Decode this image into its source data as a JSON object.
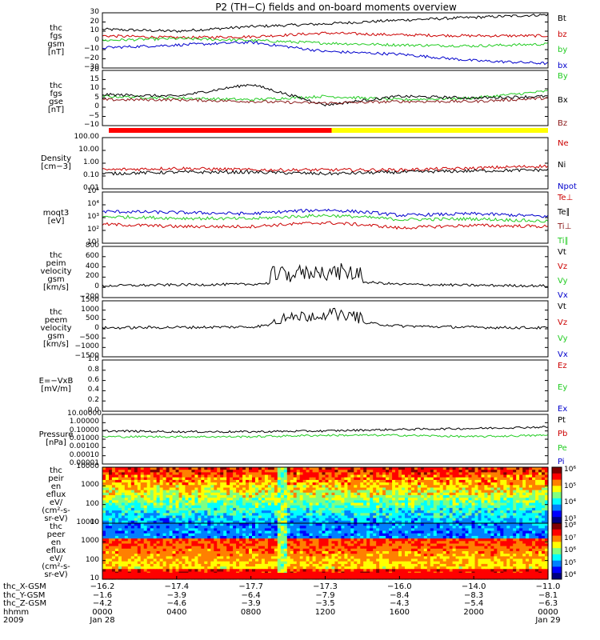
{
  "title": "P2 (TH−C) fields and on-board moments overview",
  "colors": {
    "black": "#000000",
    "red": "#cc0000",
    "green": "#22cc22",
    "blue": "#0000cc",
    "brick": "#8b1a1a",
    "yellow": "#ffff00"
  },
  "panels": [
    {
      "id": "fgs-gsm",
      "ylabel": [
        "thc",
        "fgs",
        "gsm",
        "[nT]"
      ],
      "ticks": [
        "30",
        "20",
        "10",
        "0",
        "−10",
        "−20",
        "−30"
      ],
      "ylim": [
        -30,
        30
      ],
      "legend": [
        {
          "text": "Bt",
          "color": "black"
        },
        {
          "text": "bz",
          "color": "red"
        },
        {
          "text": "by",
          "color": "green"
        },
        {
          "text": "bx",
          "color": "blue"
        }
      ]
    },
    {
      "id": "fgs-gse",
      "ylabel": [
        "thc",
        "fgs",
        "gse",
        "[nT]"
      ],
      "ticks": [
        "20",
        "15",
        "10",
        "5",
        "0",
        "−5",
        "−10"
      ],
      "ylim": [
        -12,
        20
      ],
      "legend": [
        {
          "text": "By",
          "color": "green"
        },
        {
          "text": "Bx",
          "color": "black"
        },
        {
          "text": "Bz",
          "color": "brick"
        }
      ]
    },
    {
      "id": "density",
      "ylabel": [
        "Density",
        "[cm−3]"
      ],
      "ticks": [
        "100.00",
        "10.00",
        "1.00",
        "0.10",
        "0.01"
      ],
      "ylim": [
        0.01,
        100
      ],
      "legend": [
        {
          "text": "Ne",
          "color": "red"
        },
        {
          "text": "Ni",
          "color": "black"
        },
        {
          "text": "Npot",
          "color": "blue"
        }
      ]
    },
    {
      "id": "temp",
      "ylabel": [
        "moqt3",
        "[eV]"
      ],
      "ticks": [
        "10⁵",
        "10⁴",
        "10³",
        "10²",
        "10¹"
      ],
      "ylim": [
        10,
        100000
      ],
      "legend": [
        {
          "text": "Te⊥",
          "color": "red"
        },
        {
          "text": "Te∥",
          "color": "black"
        },
        {
          "text": "Ti⊥",
          "color": "brick"
        },
        {
          "text": "Ti∥",
          "color": "green"
        }
      ]
    },
    {
      "id": "peim-vel",
      "ylabel": [
        "thc",
        "peim",
        "velocity",
        "gsm",
        "[km/s]"
      ],
      "ticks": [
        "800",
        "600",
        "400",
        "200",
        "0",
        "−200"
      ],
      "ylim": [
        -200,
        800
      ],
      "legend": [
        {
          "text": "Vt",
          "color": "black"
        },
        {
          "text": "Vz",
          "color": "red"
        },
        {
          "text": "Vy",
          "color": "green"
        },
        {
          "text": "Vx",
          "color": "blue"
        }
      ]
    },
    {
      "id": "peem-vel",
      "ylabel": [
        "thc",
        "peem",
        "velocity",
        "gsm",
        "[km/s]"
      ],
      "ticks": [
        "1500",
        "1000",
        "500",
        "0",
        "−500",
        "−1000",
        "−1500"
      ],
      "ylim": [
        -1500,
        1500
      ],
      "legend": [
        {
          "text": "Vt",
          "color": "black"
        },
        {
          "text": "Vz",
          "color": "red"
        },
        {
          "text": "Vy",
          "color": "green"
        },
        {
          "text": "Vx",
          "color": "blue"
        }
      ]
    },
    {
      "id": "efield",
      "ylabel": [
        "E=−VxB",
        "[mV/m]"
      ],
      "ticks": [
        "1.0",
        "0.8",
        "0.6",
        "0.4",
        "0.2",
        "0.0"
      ],
      "ylim": [
        0,
        1
      ],
      "legend": [
        {
          "text": "Ez",
          "color": "red"
        },
        {
          "text": "Ey",
          "color": "green"
        },
        {
          "text": "Ex",
          "color": "blue"
        }
      ]
    },
    {
      "id": "pressure",
      "ylabel": [
        "Pressure",
        "[nPa]"
      ],
      "ticks": [
        "10.00000",
        "1.00000",
        "0.10000",
        "0.01000",
        "0.00100",
        "0.00010",
        "0.00001"
      ],
      "ylim": [
        1e-05,
        10
      ],
      "legend": [
        {
          "text": "Pt",
          "color": "black"
        },
        {
          "text": "Pb",
          "color": "red"
        },
        {
          "text": "Pe",
          "color": "green"
        },
        {
          "text": "Pi",
          "color": "blue"
        }
      ]
    },
    {
      "id": "peir",
      "ylabel": [
        "thc",
        "peir",
        "en",
        "eflux",
        "eV/",
        "(cm²-s-",
        "sr-eV)"
      ],
      "ticks": [
        "10000",
        "1000",
        "100",
        "10"
      ],
      "ylim": [
        5,
        20000
      ],
      "colorbar": [
        "10⁶",
        "10⁵",
        "10⁴",
        "10³"
      ]
    },
    {
      "id": "peer",
      "ylabel": [
        "thc",
        "peer",
        "en",
        "eflux",
        "eV/",
        "(cm²-s-",
        "sr-eV)"
      ],
      "ticks": [
        "10000",
        "1000",
        "100",
        "10"
      ],
      "ylim": [
        5,
        20000
      ],
      "colorbar": [
        "10⁸",
        "10⁷",
        "10⁶",
        "10⁵",
        "10⁴"
      ]
    }
  ],
  "xaxis": {
    "rows": [
      {
        "label": "thc_X-GSM",
        "values": [
          "−16.2",
          "−17.4",
          "−17.7",
          "−17.3",
          "−16.0",
          "−14.0",
          "−11.0"
        ]
      },
      {
        "label": "thc_Y-GSM",
        "values": [
          "−1.6",
          "−3.9",
          "−6.4",
          "−7.9",
          "−8.4",
          "−8.3",
          "−8.1"
        ]
      },
      {
        "label": "thc_Z-GSM",
        "values": [
          "−4.2",
          "−4.6",
          "−3.9",
          "−3.5",
          "−4.3",
          "−5.4",
          "−6.3"
        ]
      },
      {
        "label": "hhmm",
        "values": [
          "0000",
          "0400",
          "0800",
          "1200",
          "1600",
          "2000",
          "0000"
        ]
      },
      {
        "label": "2009",
        "values": [
          "Jan 28",
          "",
          "",
          "",
          "",
          "",
          "Jan 29"
        ]
      }
    ]
  },
  "chart_data": {
    "type": "line",
    "title": "P2 (TH−C) fields and on-board moments overview",
    "x_hours": [
      0,
      4,
      8,
      12,
      16,
      20,
      24
    ],
    "x_ticklabels": [
      "0000",
      "0400",
      "0800",
      "1200",
      "1600",
      "2000",
      "0000"
    ],
    "series": [
      {
        "panel": "fgs-gsm",
        "name": "Bt",
        "values": [
          12,
          10,
          15,
          18,
          22,
          25,
          28
        ]
      },
      {
        "panel": "fgs-gsm",
        "name": "bz",
        "values": [
          5,
          3,
          4,
          8,
          6,
          5,
          5
        ]
      },
      {
        "panel": "fgs-gsm",
        "name": "by",
        "values": [
          0,
          2,
          0,
          -3,
          -5,
          -6,
          -4
        ]
      },
      {
        "panel": "fgs-gsm",
        "name": "bx",
        "values": [
          -8,
          -5,
          -2,
          -12,
          -15,
          -22,
          -25
        ]
      },
      {
        "panel": "fgs-gse",
        "name": "By",
        "values": [
          5,
          4,
          3,
          5,
          3,
          4,
          8
        ]
      },
      {
        "panel": "fgs-gse",
        "name": "Bx",
        "values": [
          6,
          5,
          12,
          0,
          5,
          4,
          5
        ]
      },
      {
        "panel": "fgs-gse",
        "name": "Bz",
        "values": [
          3,
          3,
          2,
          1,
          2,
          2,
          4
        ]
      },
      {
        "panel": "density",
        "name": "Ne",
        "values": [
          0.3,
          0.4,
          0.3,
          0.3,
          0.3,
          0.4,
          0.6
        ]
      },
      {
        "panel": "density",
        "name": "Ni",
        "values": [
          0.15,
          0.2,
          0.2,
          0.15,
          0.2,
          0.25,
          0.3
        ]
      },
      {
        "panel": "temp",
        "name": "Te∥",
        "values": [
          3000,
          2500,
          2000,
          4000,
          1500,
          2000,
          1200
        ]
      },
      {
        "panel": "temp",
        "name": "Ti∥",
        "values": [
          1200,
          900,
          800,
          1500,
          700,
          800,
          500
        ]
      },
      {
        "panel": "temp",
        "name": "Te⊥",
        "values": [
          300,
          200,
          200,
          400,
          150,
          250,
          200
        ]
      },
      {
        "panel": "peim-vel",
        "name": "Vt",
        "values": [
          30,
          50,
          60,
          150,
          60,
          40,
          30
        ]
      },
      {
        "panel": "peem-vel",
        "name": "Vt",
        "values": [
          50,
          80,
          100,
          500,
          150,
          80,
          50
        ]
      },
      {
        "panel": "pressure",
        "name": "Pt",
        "values": [
          0.1,
          0.08,
          0.08,
          0.1,
          0.15,
          0.2,
          0.3
        ]
      },
      {
        "panel": "pressure",
        "name": "Pe",
        "values": [
          0.02,
          0.02,
          0.02,
          0.03,
          0.03,
          0.02,
          0.03
        ]
      }
    ],
    "legend_position": "right"
  }
}
